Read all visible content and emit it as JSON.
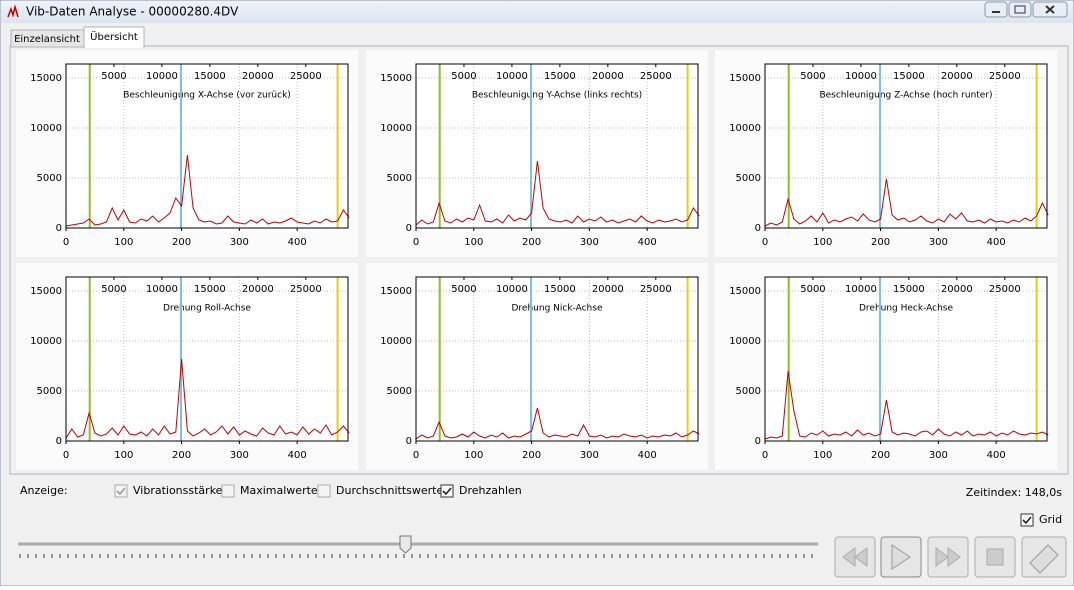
{
  "window": {
    "title": "Vib-Daten Analyse - 00000280.4DV"
  },
  "tabs": [
    "Einzelansicht",
    "Übersicht"
  ],
  "chart_data": [
    {
      "type": "line",
      "title": "Beschleunigung X-Achse (vor zurück)",
      "xlim": [
        0,
        488
      ],
      "xticks": [
        0,
        100,
        200,
        300,
        400
      ],
      "x2lim": [
        0,
        29400
      ],
      "x2ticks": [
        5000,
        10000,
        15000,
        20000,
        25000
      ],
      "ylim": [
        0,
        16400
      ],
      "yticks": [
        0,
        5000,
        10000,
        15000
      ],
      "grid": true,
      "color": "#c00000",
      "markers": [
        {
          "x": 41,
          "color": "#8cbf1f"
        },
        {
          "x": 199,
          "color": "#7dbfe6"
        },
        {
          "x": 470,
          "color": "#e6d200"
        }
      ],
      "x": [
        0,
        10,
        20,
        30,
        40,
        50,
        60,
        70,
        80,
        90,
        100,
        110,
        120,
        130,
        140,
        150,
        160,
        170,
        180,
        190,
        200,
        210,
        220,
        230,
        240,
        250,
        260,
        270,
        280,
        290,
        300,
        310,
        320,
        330,
        340,
        350,
        360,
        370,
        380,
        390,
        400,
        410,
        420,
        430,
        440,
        450,
        460,
        470,
        480,
        490
      ],
      "values": [
        200,
        300,
        400,
        500,
        900,
        300,
        400,
        600,
        2000,
        800,
        1800,
        600,
        500,
        900,
        700,
        1200,
        600,
        1000,
        1500,
        3000,
        2200,
        7300,
        2000,
        800,
        600,
        700,
        400,
        500,
        1200,
        600,
        500,
        400,
        800,
        500,
        900,
        400,
        600,
        500,
        700,
        1000,
        600,
        500,
        400,
        700,
        500,
        900,
        600,
        700,
        1800,
        1000
      ]
    },
    {
      "type": "line",
      "title": "Beschleunigung Y-Achse (links rechts)",
      "xlim": [
        0,
        488
      ],
      "xticks": [
        0,
        100,
        200,
        300,
        400
      ],
      "x2lim": [
        0,
        29400
      ],
      "x2ticks": [
        5000,
        10000,
        15000,
        20000,
        25000
      ],
      "ylim": [
        0,
        16400
      ],
      "yticks": [
        0,
        5000,
        10000,
        15000
      ],
      "grid": true,
      "color": "#c00000",
      "markers": [
        {
          "x": 41,
          "color": "#8cbf1f"
        },
        {
          "x": 199,
          "color": "#7dbfe6"
        },
        {
          "x": 470,
          "color": "#e6d200"
        }
      ],
      "x": [
        0,
        10,
        20,
        30,
        40,
        50,
        60,
        70,
        80,
        90,
        100,
        110,
        120,
        130,
        140,
        150,
        160,
        170,
        180,
        190,
        200,
        210,
        220,
        230,
        240,
        250,
        260,
        270,
        280,
        290,
        300,
        310,
        320,
        330,
        340,
        350,
        360,
        370,
        380,
        390,
        400,
        410,
        420,
        430,
        440,
        450,
        460,
        470,
        480,
        490
      ],
      "values": [
        300,
        800,
        400,
        600,
        2500,
        700,
        500,
        900,
        600,
        1000,
        800,
        2300,
        700,
        600,
        900,
        500,
        1300,
        700,
        1000,
        800,
        1500,
        6700,
        2000,
        900,
        700,
        600,
        800,
        500,
        1200,
        600,
        900,
        700,
        1100,
        600,
        800,
        500,
        700,
        900,
        600,
        1200,
        700,
        500,
        800,
        600,
        700,
        900,
        600,
        800,
        2000,
        1200
      ]
    },
    {
      "type": "line",
      "title": "Beschleunigung Z-Achse (hoch runter)",
      "xlim": [
        0,
        488
      ],
      "xticks": [
        0,
        100,
        200,
        300,
        400
      ],
      "x2lim": [
        0,
        29400
      ],
      "x2ticks": [
        5000,
        10000,
        15000,
        20000,
        25000
      ],
      "ylim": [
        0,
        16400
      ],
      "yticks": [
        0,
        5000,
        10000,
        15000
      ],
      "grid": true,
      "color": "#c00000",
      "markers": [
        {
          "x": 41,
          "color": "#8cbf1f"
        },
        {
          "x": 199,
          "color": "#7dbfe6"
        },
        {
          "x": 470,
          "color": "#e6d200"
        }
      ],
      "x": [
        0,
        10,
        20,
        30,
        40,
        50,
        60,
        70,
        80,
        90,
        100,
        110,
        120,
        130,
        140,
        150,
        160,
        170,
        180,
        190,
        200,
        210,
        220,
        230,
        240,
        250,
        260,
        270,
        280,
        290,
        300,
        310,
        320,
        330,
        340,
        350,
        360,
        370,
        380,
        390,
        400,
        410,
        420,
        430,
        440,
        450,
        460,
        470,
        480,
        490
      ],
      "values": [
        200,
        500,
        300,
        600,
        2900,
        900,
        400,
        700,
        1200,
        600,
        1500,
        500,
        800,
        600,
        900,
        1100,
        700,
        1400,
        800,
        600,
        900,
        4900,
        1300,
        800,
        1000,
        600,
        800,
        1200,
        700,
        500,
        900,
        600,
        1400,
        900,
        1500,
        700,
        600,
        800,
        500,
        900,
        600,
        700,
        500,
        800,
        600,
        1000,
        700,
        1200,
        2500,
        1300
      ]
    },
    {
      "type": "line",
      "title": "Drehung Roll-Achse",
      "xlim": [
        0,
        488
      ],
      "xticks": [
        0,
        100,
        200,
        300,
        400
      ],
      "x2lim": [
        0,
        29400
      ],
      "x2ticks": [
        5000,
        10000,
        15000,
        20000,
        25000
      ],
      "ylim": [
        0,
        16400
      ],
      "yticks": [
        0,
        5000,
        10000,
        15000
      ],
      "grid": true,
      "color": "#c00000",
      "markers": [
        {
          "x": 41,
          "color": "#8cbf1f"
        },
        {
          "x": 199,
          "color": "#7dbfe6"
        },
        {
          "x": 470,
          "color": "#e6d200"
        }
      ],
      "x": [
        0,
        10,
        20,
        30,
        40,
        50,
        60,
        70,
        80,
        90,
        100,
        110,
        120,
        130,
        140,
        150,
        160,
        170,
        180,
        190,
        200,
        210,
        220,
        230,
        240,
        250,
        260,
        270,
        280,
        290,
        300,
        310,
        320,
        330,
        340,
        350,
        360,
        370,
        380,
        390,
        400,
        410,
        420,
        430,
        440,
        450,
        460,
        470,
        480,
        490
      ],
      "values": [
        300,
        1200,
        400,
        600,
        2800,
        800,
        500,
        700,
        1300,
        600,
        1500,
        700,
        600,
        900,
        500,
        1200,
        600,
        1500,
        700,
        900,
        8200,
        1000,
        500,
        800,
        1200,
        600,
        900,
        1500,
        700,
        1400,
        600,
        1000,
        700,
        500,
        1300,
        800,
        600,
        1500,
        700,
        900,
        600,
        1400,
        700,
        1200,
        800,
        1600,
        600,
        900,
        1500,
        800
      ]
    },
    {
      "type": "line",
      "title": "Drehung Nick-Achse",
      "xlim": [
        0,
        488
      ],
      "xticks": [
        0,
        100,
        200,
        300,
        400
      ],
      "x2lim": [
        0,
        29400
      ],
      "x2ticks": [
        5000,
        10000,
        15000,
        20000,
        25000
      ],
      "ylim": [
        0,
        16400
      ],
      "yticks": [
        0,
        5000,
        10000,
        15000
      ],
      "grid": true,
      "color": "#c00000",
      "markers": [
        {
          "x": 41,
          "color": "#8cbf1f"
        },
        {
          "x": 199,
          "color": "#7dbfe6"
        },
        {
          "x": 470,
          "color": "#e6d200"
        }
      ],
      "x": [
        0,
        10,
        20,
        30,
        40,
        50,
        60,
        70,
        80,
        90,
        100,
        110,
        120,
        130,
        140,
        150,
        160,
        170,
        180,
        190,
        200,
        210,
        220,
        230,
        240,
        250,
        260,
        270,
        280,
        290,
        300,
        310,
        320,
        330,
        340,
        350,
        360,
        370,
        380,
        390,
        400,
        410,
        420,
        430,
        440,
        450,
        460,
        470,
        480,
        490
      ],
      "values": [
        200,
        600,
        300,
        500,
        1900,
        500,
        300,
        400,
        700,
        400,
        900,
        500,
        300,
        600,
        400,
        800,
        300,
        500,
        400,
        700,
        1000,
        3300,
        800,
        400,
        600,
        500,
        400,
        700,
        500,
        1600,
        500,
        400,
        600,
        300,
        500,
        400,
        700,
        500,
        400,
        600,
        300,
        500,
        400,
        600,
        500,
        800,
        400,
        600,
        1000,
        700
      ]
    },
    {
      "type": "line",
      "title": "Drehung Heck-Achse",
      "xlim": [
        0,
        488
      ],
      "xticks": [
        0,
        100,
        200,
        300,
        400
      ],
      "x2lim": [
        0,
        29400
      ],
      "x2ticks": [
        5000,
        10000,
        15000,
        20000,
        25000
      ],
      "ylim": [
        0,
        16400
      ],
      "yticks": [
        0,
        5000,
        10000,
        15000
      ],
      "grid": true,
      "color": "#c00000",
      "markers": [
        {
          "x": 41,
          "color": "#8cbf1f"
        },
        {
          "x": 199,
          "color": "#7dbfe6"
        },
        {
          "x": 470,
          "color": "#e6d200"
        }
      ],
      "x": [
        0,
        10,
        20,
        30,
        40,
        50,
        60,
        70,
        80,
        90,
        100,
        110,
        120,
        130,
        140,
        150,
        160,
        170,
        180,
        190,
        200,
        210,
        220,
        230,
        240,
        250,
        260,
        270,
        280,
        290,
        300,
        310,
        320,
        330,
        340,
        350,
        360,
        370,
        380,
        390,
        400,
        410,
        420,
        430,
        440,
        450,
        460,
        470,
        480,
        490
      ],
      "values": [
        200,
        400,
        300,
        500,
        7000,
        3000,
        500,
        400,
        800,
        600,
        1000,
        500,
        700,
        600,
        900,
        500,
        1100,
        600,
        800,
        500,
        700,
        4100,
        900,
        600,
        800,
        700,
        500,
        900,
        1000,
        600,
        1200,
        700,
        500,
        900,
        600,
        1000,
        500,
        700,
        600,
        900,
        500,
        800,
        600,
        1000,
        700,
        600,
        800,
        700,
        900,
        600
      ]
    }
  ],
  "controls": {
    "anzeige": "Anzeige:",
    "checkboxes": [
      {
        "label": "Vibrationsstärke",
        "checked": true,
        "enabled": false
      },
      {
        "label": "Maximalwerte",
        "checked": false,
        "enabled": false
      },
      {
        "label": "Durchschnittswerte",
        "checked": false,
        "enabled": false
      },
      {
        "label": "Drehzahlen",
        "checked": true,
        "enabled": true
      }
    ],
    "zeitindex": "Zeitindex: 148,0s",
    "grid": {
      "label": "Grid",
      "checked": true
    }
  }
}
